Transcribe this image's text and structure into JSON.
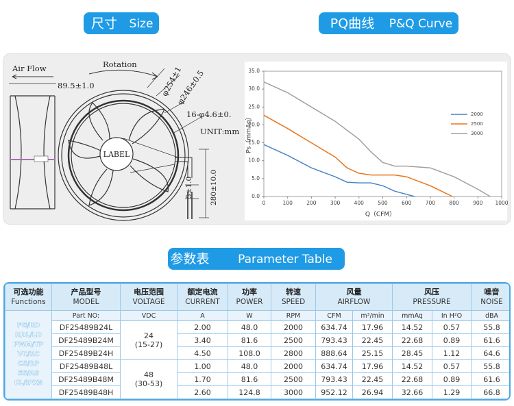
{
  "size_heading": {
    "zh": "尺寸",
    "en": "Size"
  },
  "curve_heading": {
    "zh": "PQ曲线",
    "en": "P&Q Curve"
  },
  "table_heading": {
    "zh": "参数表",
    "en": "Parameter Table"
  },
  "drawing": {
    "air_flow": "Air Flow",
    "rotation": "Rotation",
    "depth": "89.5±1.0",
    "outer_dia": "φ254±1",
    "inner_dia": "φ246±0.5",
    "holes": "16-φ4.6±0.",
    "unit": "UNIT:mm",
    "label": "LABEL",
    "strip": "5±1.0",
    "lead": "280±10.0"
  },
  "chart_data": {
    "type": "line",
    "xlabel": "Q（CFM）",
    "ylabel": "Ps（mmAq）",
    "xlim": [
      0,
      1000
    ],
    "xticks": [
      0,
      100,
      200,
      300,
      400,
      500,
      600,
      700,
      800,
      900,
      1000
    ],
    "ylim": [
      0,
      35
    ],
    "yticks": [
      {
        "value": 0,
        "label": "0.0"
      },
      {
        "value": 5,
        "label": "5.0"
      },
      {
        "value": 10,
        "label": "10.0"
      },
      {
        "value": 15,
        "label": "15.0"
      },
      {
        "value": 20,
        "label": "20.0"
      },
      {
        "value": 25,
        "label": "25.0"
      },
      {
        "value": 30,
        "label": "30.0"
      },
      {
        "value": 35,
        "label": "35.0"
      }
    ],
    "grid": false,
    "legend": "right",
    "series": [
      {
        "name": "2000",
        "color": "#4a86c5",
        "x": [
          0,
          100,
          200,
          300,
          350,
          400,
          450,
          500,
          550,
          634
        ],
        "values": [
          14.5,
          11.5,
          8,
          5.5,
          4,
          3.8,
          3.8,
          3,
          1.5,
          0
        ]
      },
      {
        "name": "2500",
        "color": "#e8751a",
        "x": [
          0,
          100,
          200,
          300,
          350,
          400,
          450,
          500,
          550,
          600,
          700,
          793
        ],
        "values": [
          22.7,
          19,
          15,
          11,
          8,
          6.5,
          6,
          6,
          6,
          5.5,
          3,
          0
        ]
      },
      {
        "name": "3000",
        "color": "#a0a0a0",
        "x": [
          0,
          100,
          200,
          300,
          400,
          450,
          500,
          550,
          600,
          700,
          800,
          900,
          952
        ],
        "values": [
          32,
          29,
          25,
          21,
          16,
          12.5,
          9.5,
          8.5,
          8.5,
          8,
          5.5,
          2,
          0
        ]
      }
    ]
  },
  "table": {
    "headers": [
      {
        "zh": "可选功能",
        "en": "Functions"
      },
      {
        "zh": "产品型号",
        "en": "MODEL"
      },
      {
        "zh": "电压范围",
        "en": "VOLTAGE"
      },
      {
        "zh": "额定电流",
        "en": "CURRENT"
      },
      {
        "zh": "功率",
        "en": "POWER"
      },
      {
        "zh": "转速",
        "en": "SPEED"
      },
      {
        "zh": "风量",
        "en": "AIRFLOW"
      },
      {
        "zh": "风压",
        "en": "PRESSURE"
      },
      {
        "zh": "噪音",
        "en": "NOISE"
      }
    ],
    "units": [
      "Part NO:",
      "VDC",
      "A",
      "W",
      "RPM",
      "CFM",
      "m³/min",
      "mmAq",
      "In H²O",
      "dBA"
    ],
    "functions": [
      "FG/RD",
      "RDL/LD",
      "PWM/TP",
      "VC/RC",
      "CS/RP",
      "SS/AS",
      "CL/IPX8"
    ],
    "groups": [
      {
        "voltage": "24",
        "range": "(15-27)",
        "rows": [
          [
            "DF25489B24L",
            "2.00",
            "48.0",
            "2000",
            "634.74",
            "17.96",
            "14.52",
            "0.57",
            "55.8"
          ],
          [
            "DF25489B24M",
            "3.40",
            "81.6",
            "2500",
            "793.43",
            "22.45",
            "22.68",
            "0.89",
            "61.6"
          ],
          [
            "DF25489B24H",
            "4.50",
            "108.0",
            "2800",
            "888.64",
            "25.15",
            "28.45",
            "1.12",
            "64.6"
          ]
        ]
      },
      {
        "voltage": "48",
        "range": "(30-53)",
        "rows": [
          [
            "DF25489B48L",
            "1.00",
            "48.0",
            "2000",
            "634.74",
            "17.96",
            "14.52",
            "0.57",
            "55.8"
          ],
          [
            "DF25489B48M",
            "1.70",
            "81.6",
            "2500",
            "793.43",
            "22.45",
            "22.68",
            "0.89",
            "61.6"
          ],
          [
            "DF25489B48H",
            "2.60",
            "124.8",
            "3000",
            "952.12",
            "26.94",
            "32.66",
            "1.29",
            "66.8"
          ]
        ]
      }
    ]
  }
}
